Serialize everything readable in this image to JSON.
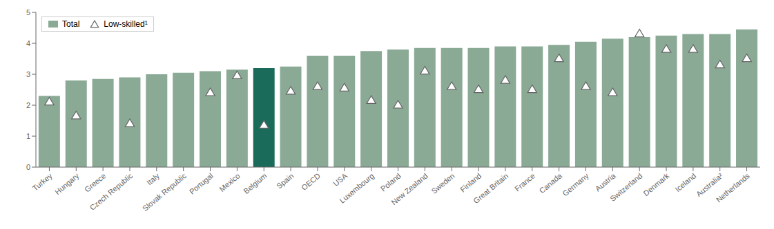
{
  "chart_data": {
    "type": "bar",
    "categories": [
      "Turkey",
      "Hungary",
      "Greece",
      "Czech Republic",
      "Italy",
      "Slovak Republic",
      "Portugal",
      "Mexico",
      "Belgium",
      "Spain",
      "OECD",
      "USA",
      "Luxembourg",
      "Poland",
      "New Zealand",
      "Sweden",
      "Finland",
      "Great Britain",
      "France",
      "Canada",
      "Germany",
      "Austria",
      "Switzerland",
      "Denmark",
      "Iceland",
      "Australia²",
      "Netherlands"
    ],
    "series": [
      {
        "name": "Total",
        "type": "bar",
        "color": "#8aaa96",
        "colors": [
          "#8aaa96",
          "#8aaa96",
          "#8aaa96",
          "#8aaa96",
          "#8aaa96",
          "#8aaa96",
          "#8aaa96",
          "#8aaa96",
          "#1a6b5a",
          "#8aaa96",
          "#8aaa96",
          "#8aaa96",
          "#8aaa96",
          "#8aaa96",
          "#8aaa96",
          "#8aaa96",
          "#8aaa96",
          "#8aaa96",
          "#8aaa96",
          "#8aaa96",
          "#8aaa96",
          "#8aaa96",
          "#8aaa96",
          "#8aaa96",
          "#8aaa96",
          "#8aaa96",
          "#8aaa96"
        ],
        "values": [
          2.3,
          2.8,
          2.85,
          2.9,
          3.0,
          3.05,
          3.1,
          3.15,
          3.2,
          3.25,
          3.6,
          3.6,
          3.75,
          3.8,
          3.85,
          3.85,
          3.85,
          3.9,
          3.9,
          3.95,
          4.05,
          4.15,
          4.2,
          4.25,
          4.3,
          4.3,
          4.45
        ]
      },
      {
        "name": "Low-skilled¹",
        "type": "scatter",
        "marker": "triangle",
        "color": "#666666",
        "values": [
          2.1,
          1.65,
          null,
          1.4,
          null,
          null,
          2.4,
          2.95,
          1.35,
          2.45,
          2.6,
          2.55,
          2.15,
          2.0,
          3.1,
          2.6,
          2.5,
          2.8,
          2.5,
          3.5,
          2.6,
          2.4,
          4.3,
          3.8,
          3.8,
          3.3,
          3.5
        ]
      }
    ],
    "ylim": [
      0,
      5
    ],
    "yticks": [
      0,
      1,
      2,
      3,
      4,
      5
    ],
    "grid": false,
    "legend": "upper left"
  }
}
